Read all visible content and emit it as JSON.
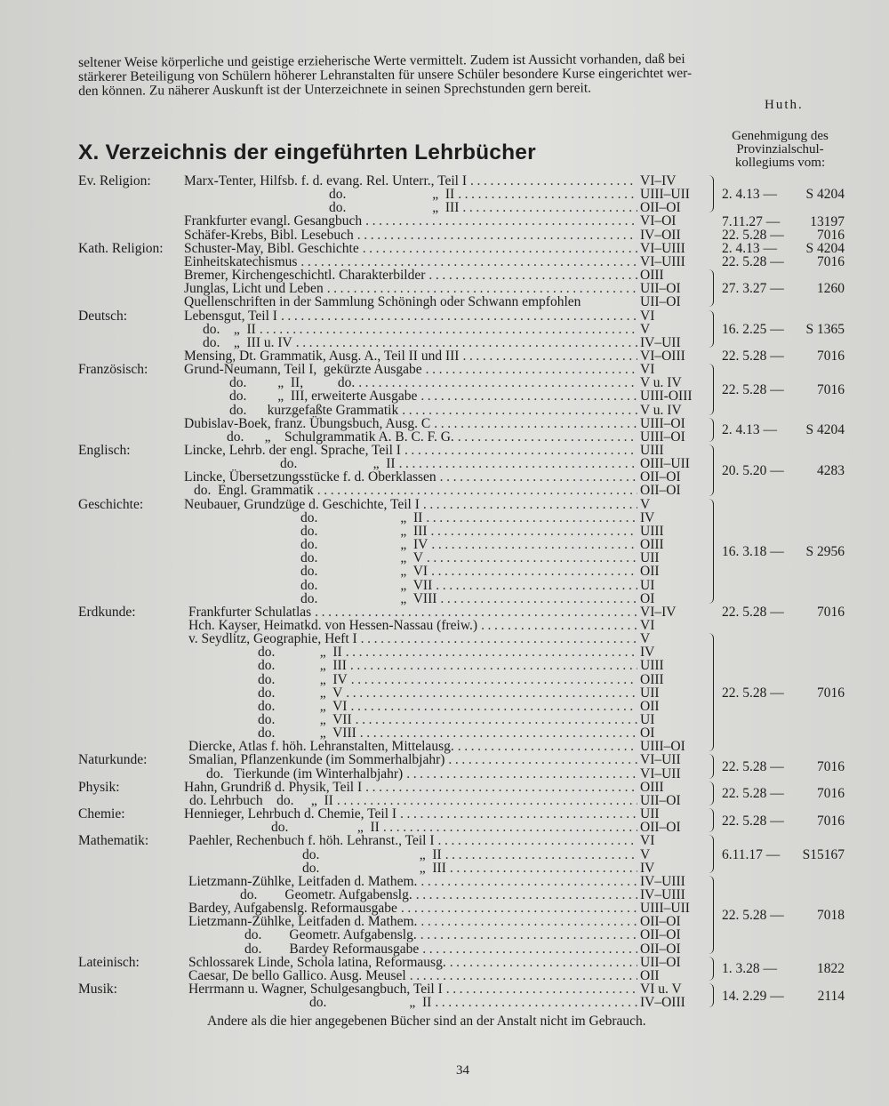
{
  "intro": {
    "lines": [
      "seltener Weise körperliche und geistige erzieherische Werte vermittelt. Zudem ist Aussicht vorhanden, daß bei",
      "stärkerer Beteiligung von Schülern höherer Lehranstalten für unsere Schüler besondere Kurse eingerichtet wer-",
      "den können. Zu näherer Auskunft ist der Unterzeichnete in seinen Sprechstunden gern bereit."
    ],
    "signature": "Huth."
  },
  "section": {
    "title": "X. Verzeichnis der eingeführten Lehrbücher",
    "approval_header": [
      "Genehmigung des",
      "Provinzialschul-",
      "kollegiums vom:"
    ]
  },
  "rows": [
    {
      "subject": "Ev. Religion:",
      "book": "Marx-Tenter, Hilfsb. f. d. evang. Rel. Unterr., Teil I",
      "cls": "VI–IV"
    },
    {
      "book": "do.                         „  II",
      "cls": "UIII–UII"
    },
    {
      "book": "do.                         „  III",
      "cls": "OII–OI"
    },
    {
      "book": "Frankfurter evangl. Gesangbuch",
      "cls": "VI–OI"
    },
    {
      "book": "Schäfer-Krebs, Bibl. Lesebuch",
      "cls": "IV–OII"
    },
    {
      "subject": "Kath. Religion:",
      "book": "Schuster-May, Bibl. Geschichte",
      "cls": "VI–UIII"
    },
    {
      "book": "Einheitskatechismus",
      "cls": "VI–UIII"
    },
    {
      "book": "Bremer, Kirchengeschichtl. Charakterbilder",
      "cls": "OIII"
    },
    {
      "book": "Junglas, Licht und Leben",
      "cls": "UII–OI"
    },
    {
      "book": "Quellenschriften in der Sammlung Schöningh oder Schwann empfohlen",
      "cls": "UII–OI",
      "nodots": true
    },
    {
      "subject": "Deutsch:",
      "book": "Lebensgut, Teil I",
      "cls": "VI"
    },
    {
      "book": "do.    „  II",
      "cls": "V"
    },
    {
      "book": "do.    „  III u. IV",
      "cls": "IV–UII"
    },
    {
      "book": "Mensing, Dt. Grammatik, Ausg. A., Teil II und III",
      "cls": "VI–OIII"
    },
    {
      "subject": "Französisch:",
      "book": "Grund-Neumann, Teil I,  gekürzte Ausgabe",
      "cls": "VI"
    },
    {
      "book": "do.         „  II,          do.",
      "cls": "V u. IV"
    },
    {
      "book": "do.         „  III, erweiterte Ausgabe",
      "cls": "UIII-OIII"
    },
    {
      "book": "do.      kurzgefaßte Grammatik",
      "cls": "V u. IV"
    },
    {
      "book": "Dubislav-Boek, franz. Übungsbuch, Ausg. C",
      "cls": "UIII–OI"
    },
    {
      "book": "do.      „    Schulgrammatik A. B. C. F. G.",
      "cls": "UIII–OI"
    },
    {
      "subject": "Englisch:",
      "book": "Lincke, Lehrb. der engl. Sprache, Teil I",
      "cls": "UIII"
    },
    {
      "book": "do.                      „  II",
      "cls": "OIII–UII"
    },
    {
      "book": "Lincke, Übersetzungsstücke f. d. Oberklassen",
      "cls": "OII–OI"
    },
    {
      "book": "do.  Engl. Grammatik",
      "cls": "OII–OI"
    },
    {
      "subject": "Geschichte:",
      "book": "Neubauer, Grundzüge d. Geschichte, Teil I",
      "cls": "V"
    },
    {
      "book": "do.                        „  II",
      "cls": "IV"
    },
    {
      "book": "do.                        „  III",
      "cls": "UIII"
    },
    {
      "book": "do.                        „  IV",
      "cls": "OIII"
    },
    {
      "book": "do.                        „  V",
      "cls": "UII"
    },
    {
      "book": "do.                        „  VI",
      "cls": "OII"
    },
    {
      "book": "do.                        „  VII",
      "cls": "UI"
    },
    {
      "book": "do.                        „  VIII",
      "cls": "OI"
    },
    {
      "subject": "Erdkunde:",
      "book": "Frankfurter Schulatlas",
      "cls": "VI–IV"
    },
    {
      "book": "Hch. Kayser, Heimatkd. von Hessen-Nassau (freiw.)",
      "cls": "VI"
    },
    {
      "book": "v. Seydlitz, Geographie, Heft I",
      "cls": "V"
    },
    {
      "book": "do.             „  II",
      "cls": "IV"
    },
    {
      "book": "do.             „  III",
      "cls": "UIII"
    },
    {
      "book": "do.             „  IV",
      "cls": "OIII"
    },
    {
      "book": "do.             „  V",
      "cls": "UII"
    },
    {
      "book": "do.             „  VI",
      "cls": "OII"
    },
    {
      "book": "do.             „  VII",
      "cls": "UI"
    },
    {
      "book": "do.             „  VIII",
      "cls": "OI"
    },
    {
      "book": "Diercke, Atlas f. höh. Lehranstalten, Mittelausg.",
      "cls": "UIII–OI"
    },
    {
      "subject": "Naturkunde:",
      "book": "Smalian, Pflanzenkunde (im Sommerhalbjahr)",
      "cls": "VI–UII"
    },
    {
      "book": "do.   Tierkunde (im Winterhalbjahr)",
      "cls": "VI–UII"
    },
    {
      "subject": "Physik:",
      "book": "Hahn, Grundriß d. Physik, Teil I",
      "cls": "OIII"
    },
    {
      "book": "do. Lehrbuch    do.     „  II",
      "cls": "UII–OI"
    },
    {
      "subject": "Chemie:",
      "book": "Hennieger, Lehrbuch d. Chemie, Teil I",
      "cls": "UII"
    },
    {
      "book": "do.                    „  II",
      "cls": "OII–OI"
    },
    {
      "subject": "Mathematik:",
      "book": "Paehler, Rechenbuch f. höh. Lehranst., Teil I",
      "cls": "VI"
    },
    {
      "book": "do.                             „  II",
      "cls": "V"
    },
    {
      "book": "do.                             „  III",
      "cls": "IV"
    },
    {
      "book": "Lietzmann-Zühlke, Leitfaden d. Mathem.",
      "cls": "IV–UIII"
    },
    {
      "book": "do.        Geometr. Aufgabenslg.",
      "cls": "IV–UIII"
    },
    {
      "book": "Bardey, Aufgabenslg. Reformausgabe",
      "cls": "UIII–UII"
    },
    {
      "book": "Lietzmann-Zühlke, Leitfaden d. Mathem.",
      "cls": "OII–OI"
    },
    {
      "book": "do.        Geometr. Aufgabenslg.",
      "cls": "OII–OI"
    },
    {
      "book": "do.        Bardey Reformausgabe",
      "cls": "OII–OI"
    },
    {
      "subject": "Lateinisch:",
      "book": "Schlossarek Linde, Schola latina, Reformausg.",
      "cls": "UII–OI"
    },
    {
      "book": "Caesar, De bello Gallico. Ausg. Meusel",
      "cls": "OII"
    },
    {
      "subject": "Musik:",
      "book": "Herrmann u. Wagner, Schulgesangbuch, Teil I",
      "cls": "VI u. V"
    },
    {
      "book": "do.                        „  II",
      "cls": "IV–OIII"
    }
  ],
  "approvals": [
    {
      "from": 1,
      "to": 3,
      "date": "2. 4.13 —",
      "number": "S 4204"
    },
    {
      "from": 4,
      "to": 4,
      "date": "7.11.27 —",
      "number": "13197"
    },
    {
      "from": 5,
      "to": 5,
      "date": "22. 5.28 —",
      "number": "7016"
    },
    {
      "from": 6,
      "to": 6,
      "date": "2. 4.13 —",
      "number": "S 4204"
    },
    {
      "from": 7,
      "to": 7,
      "date": "22. 5.28 —",
      "number": "7016"
    },
    {
      "from": 8,
      "to": 10,
      "date": "27. 3.27 —",
      "number": "1260"
    },
    {
      "from": 11,
      "to": 13,
      "date": "16. 2.25 —",
      "number": "S 1365"
    },
    {
      "from": 14,
      "to": 14,
      "date": "22. 5.28 —",
      "number": "7016"
    },
    {
      "from": 15,
      "to": 18,
      "date": "22. 5.28 —",
      "number": "7016"
    },
    {
      "from": 19,
      "to": 20,
      "date": "2. 4.13 —",
      "number": "S 4204"
    },
    {
      "from": 21,
      "to": 24,
      "date": "20. 5.20 —",
      "number": "4283"
    },
    {
      "from": 25,
      "to": 32,
      "date": "16. 3.18 —",
      "number": "S 2956"
    },
    {
      "from": 33,
      "to": 33,
      "date": "22. 5.28 —",
      "number": "7016"
    },
    {
      "from": 35,
      "to": 43,
      "date": "22. 5.28 —",
      "number": "7016"
    },
    {
      "from": 44,
      "to": 45,
      "date": "22. 5.28 —",
      "number": "7016"
    },
    {
      "from": 46,
      "to": 47,
      "date": "22. 5.28 —",
      "number": "7016"
    },
    {
      "from": 48,
      "to": 49,
      "date": "22. 5.28 —",
      "number": "7016"
    },
    {
      "from": 50,
      "to": 52,
      "date": "6.11.17 —",
      "number": "S15167"
    },
    {
      "from": 53,
      "to": 58,
      "date": "22. 5.28 —",
      "number": "7018"
    },
    {
      "from": 59,
      "to": 60,
      "date": "1. 3.28 —",
      "number": "1822"
    },
    {
      "from": 61,
      "to": 62,
      "date": "14. 2.29 —",
      "number": "2114"
    }
  ],
  "footer_note": "Andere als die hier angegebenen Bücher sind an der Anstalt nicht im Gebrauch.",
  "page_number": "34"
}
